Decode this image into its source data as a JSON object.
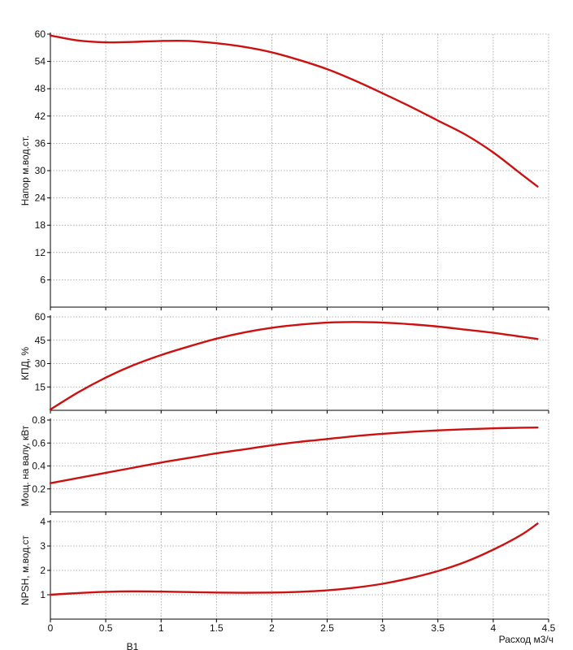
{
  "chart_data": [
    {
      "type": "line",
      "ylabel": "Напор м.вод.ст.",
      "ylim": [
        0,
        60
      ],
      "yticks": [
        "6",
        "12",
        "18",
        "24",
        "30",
        "36",
        "42",
        "48",
        "54",
        "60"
      ],
      "yticks_values": [
        6,
        12,
        18,
        24,
        30,
        36,
        42,
        48,
        54,
        60
      ],
      "grid": true,
      "series": [
        {
          "x": [
            0,
            0.25,
            0.5,
            0.75,
            1.0,
            1.25,
            1.5,
            1.75,
            2.0,
            2.25,
            2.5,
            2.75,
            3.0,
            3.25,
            3.5,
            3.75,
            4.0,
            4.25,
            4.4
          ],
          "y": [
            59.7,
            58.6,
            58.2,
            58.3,
            58.5,
            58.5,
            58.0,
            57.2,
            56.0,
            54.3,
            52.3,
            49.8,
            47.0,
            44.1,
            41.0,
            37.9,
            34.0,
            29.3,
            26.5
          ]
        }
      ]
    },
    {
      "type": "line",
      "ylabel": "КПД, %",
      "ylim": [
        0,
        60
      ],
      "yticks": [
        "15",
        "30",
        "45",
        "60"
      ],
      "yticks_values": [
        15,
        30,
        45,
        60
      ],
      "grid": true,
      "series": [
        {
          "x": [
            0,
            0.25,
            0.5,
            0.75,
            1.0,
            1.25,
            1.5,
            1.75,
            2.0,
            2.25,
            2.5,
            2.75,
            3.0,
            3.25,
            3.5,
            3.75,
            4.0,
            4.25,
            4.4
          ],
          "y": [
            0.5,
            11.5,
            21.0,
            29.0,
            35.5,
            41.0,
            46.0,
            50.0,
            53.0,
            55.0,
            56.3,
            56.7,
            56.3,
            55.3,
            53.8,
            51.8,
            49.8,
            47.3,
            45.8
          ]
        }
      ]
    },
    {
      "type": "line",
      "ylabel": "Мощ. на валу, кВт",
      "ylim": [
        0,
        0.8
      ],
      "yticks": [
        "0.2",
        "0.4",
        "0.6",
        "0.8"
      ],
      "yticks_values": [
        0.2,
        0.4,
        0.6,
        0.8
      ],
      "grid": true,
      "series": [
        {
          "x": [
            0,
            0.25,
            0.5,
            0.75,
            1.0,
            1.25,
            1.5,
            1.75,
            2.0,
            2.25,
            2.5,
            2.75,
            3.0,
            3.25,
            3.5,
            3.75,
            4.0,
            4.25,
            4.4
          ],
          "y": [
            0.25,
            0.295,
            0.34,
            0.385,
            0.43,
            0.47,
            0.51,
            0.545,
            0.58,
            0.61,
            0.635,
            0.66,
            0.68,
            0.697,
            0.71,
            0.72,
            0.728,
            0.733,
            0.735
          ]
        }
      ]
    },
    {
      "type": "line",
      "ylabel": "NPSH, м.вод.ст",
      "ylim": [
        0,
        4
      ],
      "yticks": [
        "1",
        "2",
        "3",
        "4"
      ],
      "yticks_values": [
        1,
        2,
        3,
        4
      ],
      "grid": true,
      "xlabel": "Расход м3/ч",
      "xlim": [
        0,
        4.5
      ],
      "xticks": [
        "0",
        "0.5",
        "1",
        "1.5",
        "2",
        "2.5",
        "3",
        "3.5",
        "4",
        "4.5"
      ],
      "xticks_values": [
        0,
        0.5,
        1,
        1.5,
        2,
        2.5,
        3,
        3.5,
        4,
        4.5
      ],
      "series": [
        {
          "x": [
            0,
            0.25,
            0.5,
            0.75,
            1.0,
            1.25,
            1.5,
            1.75,
            2.0,
            2.25,
            2.5,
            2.75,
            3.0,
            3.25,
            3.5,
            3.75,
            4.0,
            4.25,
            4.4
          ],
          "y": [
            1.0,
            1.07,
            1.12,
            1.14,
            1.13,
            1.11,
            1.09,
            1.08,
            1.09,
            1.12,
            1.18,
            1.29,
            1.45,
            1.68,
            1.97,
            2.35,
            2.85,
            3.45,
            3.92
          ]
        }
      ]
    }
  ],
  "style": {
    "curve_color": "#cc1111",
    "grid_color": "#9a9a9a",
    "axis_color": "#000000"
  },
  "footer_label": "В1"
}
